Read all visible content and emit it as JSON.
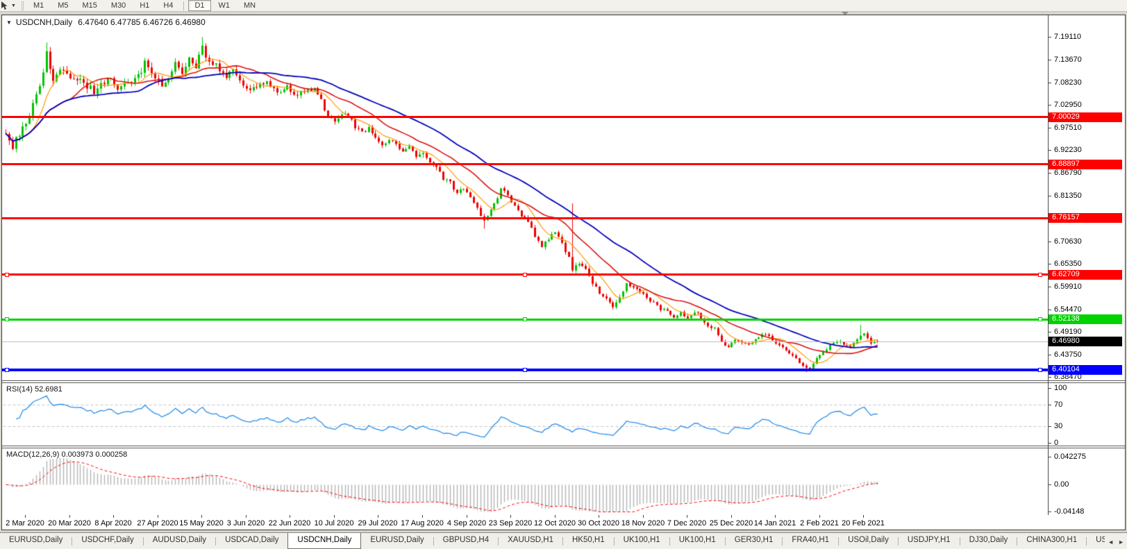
{
  "toolbar": {
    "pointer_tool_caret": "▼",
    "timeframe_groups": [
      [
        "M1",
        "M5",
        "M15",
        "M30",
        "H1",
        "H4"
      ],
      [
        "D1",
        "W1",
        "MN"
      ]
    ],
    "active_timeframe": "D1"
  },
  "chart_window": {
    "dropdown_glyph": "▼",
    "title": "USDCNH,Daily",
    "quotes": "6.47640 6.47785 6.46726 6.46980"
  },
  "chart_data": {
    "type": "candlestick",
    "symbol": "USDCNH",
    "timeframe": "Daily",
    "ohlc_display": {
      "open": "6.47640",
      "high": "6.47785",
      "low": "6.46726",
      "close": "6.46980"
    },
    "ylim": [
      6.3753,
      7.2416
    ],
    "price_axis_ticks": [
      "7.19110",
      "7.13670",
      "7.08230",
      "7.02950",
      "6.97510",
      "6.92230",
      "6.86790",
      "6.81350",
      "6.70630",
      "6.65350",
      "6.59910",
      "6.54470",
      "6.49190",
      "6.43750",
      "6.38470"
    ],
    "hlines": [
      {
        "label": "7.00029",
        "price": 7.00029,
        "color": "#ff0000",
        "width": 3,
        "handles": false
      },
      {
        "label": "6.88897",
        "price": 6.88897,
        "color": "#ff0000",
        "width": 3,
        "handles": false
      },
      {
        "label": "6.76157",
        "price": 6.76157,
        "color": "#ff0000",
        "width": 3,
        "handles": false
      },
      {
        "label": "6.62709",
        "price": 6.62709,
        "color": "#ff0000",
        "width": 3,
        "handles": true
      },
      {
        "label": "6.52138",
        "price": 6.52138,
        "color": "#00d300",
        "width": 3,
        "handles": true
      },
      {
        "label": "6.40104",
        "price": 6.40104,
        "color": "#0000ff",
        "width": 4,
        "handles": true
      }
    ],
    "current_price": {
      "label": "6.46980",
      "value": 6.4698,
      "line_color": "#c0c0c0",
      "label_bg": "#000000"
    },
    "candles": {
      "count": 258,
      "up_color": "#00c200",
      "down_color": "#ee0000",
      "close_anchors": [
        [
          0,
          6.96
        ],
        [
          2,
          6.932
        ],
        [
          4,
          6.962
        ],
        [
          6,
          6.988
        ],
        [
          8,
          7.03
        ],
        [
          10,
          7.07
        ],
        [
          12,
          7.152
        ],
        [
          13,
          7.115
        ],
        [
          14,
          7.09
        ],
        [
          16,
          7.118
        ],
        [
          18,
          7.105
        ],
        [
          20,
          7.095
        ],
        [
          23,
          7.083
        ],
        [
          26,
          7.062
        ],
        [
          28,
          7.082
        ],
        [
          31,
          7.092
        ],
        [
          33,
          7.064
        ],
        [
          36,
          7.08
        ],
        [
          39,
          7.098
        ],
        [
          41,
          7.128
        ],
        [
          43,
          7.104
        ],
        [
          46,
          7.076
        ],
        [
          48,
          7.096
        ],
        [
          50,
          7.128
        ],
        [
          52,
          7.11
        ],
        [
          54,
          7.136
        ],
        [
          56,
          7.124
        ],
        [
          58,
          7.172
        ],
        [
          59,
          7.146
        ],
        [
          61,
          7.13
        ],
        [
          63,
          7.114
        ],
        [
          65,
          7.1
        ],
        [
          67,
          7.116
        ],
        [
          69,
          7.086
        ],
        [
          71,
          7.064
        ],
        [
          74,
          7.076
        ],
        [
          77,
          7.082
        ],
        [
          80,
          7.06
        ],
        [
          83,
          7.072
        ],
        [
          86,
          7.052
        ],
        [
          88,
          7.062
        ],
        [
          91,
          7.066
        ],
        [
          93,
          7.04
        ],
        [
          95,
          7.002
        ],
        [
          97,
          6.99
        ],
        [
          99,
          7.012
        ],
        [
          101,
          7.006
        ],
        [
          103,
          6.976
        ],
        [
          105,
          6.964
        ],
        [
          107,
          6.976
        ],
        [
          109,
          6.954
        ],
        [
          111,
          6.93
        ],
        [
          113,
          6.946
        ],
        [
          115,
          6.934
        ],
        [
          117,
          6.924
        ],
        [
          119,
          6.932
        ],
        [
          121,
          6.91
        ],
        [
          123,
          6.92
        ],
        [
          125,
          6.898
        ],
        [
          127,
          6.878
        ],
        [
          129,
          6.856
        ],
        [
          131,
          6.846
        ],
        [
          133,
          6.82
        ],
        [
          135,
          6.832
        ],
        [
          137,
          6.814
        ],
        [
          139,
          6.788
        ],
        [
          141,
          6.754
        ],
        [
          143,
          6.78
        ],
        [
          145,
          6.812
        ],
        [
          146,
          6.836
        ],
        [
          148,
          6.816
        ],
        [
          150,
          6.79
        ],
        [
          152,
          6.768
        ],
        [
          154,
          6.754
        ],
        [
          156,
          6.718
        ],
        [
          158,
          6.694
        ],
        [
          160,
          6.714
        ],
        [
          162,
          6.73
        ],
        [
          164,
          6.7
        ],
        [
          166,
          6.668
        ],
        [
          167,
          6.64
        ],
        [
          169,
          6.656
        ],
        [
          171,
          6.64
        ],
        [
          173,
          6.61
        ],
        [
          175,
          6.584
        ],
        [
          177,
          6.568
        ],
        [
          179,
          6.554
        ],
        [
          181,
          6.574
        ],
        [
          183,
          6.604
        ],
        [
          185,
          6.598
        ],
        [
          187,
          6.584
        ],
        [
          189,
          6.574
        ],
        [
          191,
          6.56
        ],
        [
          193,
          6.546
        ],
        [
          195,
          6.544
        ],
        [
          197,
          6.53
        ],
        [
          199,
          6.54
        ],
        [
          201,
          6.524
        ],
        [
          203,
          6.54
        ],
        [
          205,
          6.528
        ],
        [
          207,
          6.506
        ],
        [
          209,
          6.5
        ],
        [
          211,
          6.47
        ],
        [
          213,
          6.454
        ],
        [
          215,
          6.474
        ],
        [
          217,
          6.47
        ],
        [
          219,
          6.46
        ],
        [
          221,
          6.476
        ],
        [
          223,
          6.486
        ],
        [
          225,
          6.48
        ],
        [
          227,
          6.464
        ],
        [
          229,
          6.454
        ],
        [
          231,
          6.44
        ],
        [
          233,
          6.428
        ],
        [
          235,
          6.414
        ],
        [
          237,
          6.404
        ],
        [
          239,
          6.428
        ],
        [
          241,
          6.446
        ],
        [
          243,
          6.46
        ],
        [
          245,
          6.47
        ],
        [
          247,
          6.464
        ],
        [
          249,
          6.454
        ],
        [
          251,
          6.476
        ],
        [
          253,
          6.49
        ],
        [
          255,
          6.464
        ],
        [
          257,
          6.4698
        ]
      ],
      "spikes": [
        {
          "i": 12,
          "h": 7.178
        },
        {
          "i": 58,
          "h": 7.191
        },
        {
          "i": 141,
          "l": 6.737
        },
        {
          "i": 167,
          "h": 6.797
        },
        {
          "i": 236,
          "l": 6.397
        },
        {
          "i": 238,
          "l": 6.399
        },
        {
          "i": 252,
          "h": 6.509
        }
      ]
    },
    "moving_averages": [
      {
        "period": 8,
        "color": "#ff9900",
        "width": 1.2
      },
      {
        "period": 20,
        "color": "#dd1111",
        "width": 1.6
      },
      {
        "period": 40,
        "color": "#0000bb",
        "width": 1.8
      }
    ],
    "x_axis": {
      "date_labels": [
        "2 Mar 2020",
        "20 Mar 2020",
        "8 Apr 2020",
        "27 Apr 2020",
        "15 May 2020",
        "3 Jun 2020",
        "22 Jun 2020",
        "10 Jul 2020",
        "29 Jul 2020",
        "17 Aug 2020",
        "4 Sep 2020",
        "23 Sep 2020",
        "12 Oct 2020",
        "30 Oct 2020",
        "18 Nov 2020",
        "7 Dec 2020",
        "25 Dec 2020",
        "14 Jan 2021",
        "2 Feb 2021",
        "20 Feb 2021"
      ]
    },
    "rsi": {
      "label": "RSI(14) 52.6981",
      "period": 14,
      "value": 52.6981,
      "axis_ticks": [
        "100",
        "70",
        "30",
        "0"
      ],
      "dashed_levels": [
        70,
        30
      ],
      "ylim": [
        0,
        100
      ],
      "color": "#2a8ee8"
    },
    "macd": {
      "label": "MACD(12,26,9) 0.003973 0.000258",
      "params": [
        12,
        26,
        9
      ],
      "values": [
        0.003973,
        0.000258
      ],
      "axis_ticks": [
        "0.042275",
        "0.00",
        "-0.04148"
      ],
      "ylim": [
        -0.04148,
        0.042275
      ],
      "hist_color": "#b4b4b4",
      "signal_color": "#ff0000"
    }
  },
  "tabs": {
    "items": [
      "EURUSD,Daily",
      "USDCHF,Daily",
      "AUDUSD,Daily",
      "USDCAD,Daily",
      "USDCNH,Daily",
      "EURUSD,Daily",
      "GBPUSD,H4",
      "XAUUSD,H1",
      "HK50,H1",
      "UK100,H1",
      "UK100,H1",
      "GER30,H1",
      "FRA40,H1",
      "USOil,Daily",
      "USDJPY,H1",
      "DJ30,Daily",
      "CHINA300,H1",
      "USOil,"
    ],
    "active_index": 4,
    "scroll_left_glyph": "◄",
    "scroll_right_glyph": "►"
  }
}
